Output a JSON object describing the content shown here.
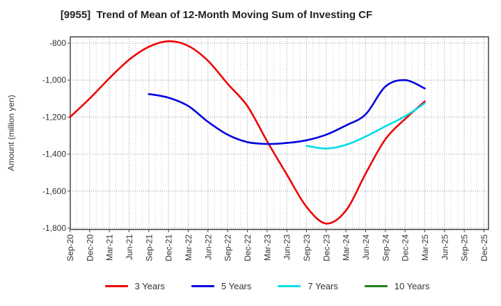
{
  "title": "[9955]  Trend of Mean of 12-Month Moving Sum of Investing CF",
  "y_axis": {
    "label": "Amount (million yen)",
    "tick_labels": [
      "-800",
      "-1,000",
      "-1,200",
      "-1,400",
      "-1,600",
      "-1,800"
    ],
    "tick_values": [
      -800,
      -1000,
      -1200,
      -1400,
      -1600,
      -1800
    ]
  },
  "x_axis": {
    "tick_labels": [
      "Sep-20",
      "Dec-20",
      "Mar-21",
      "Jun-21",
      "Sep-21",
      "Dec-21",
      "Mar-22",
      "Jun-22",
      "Sep-22",
      "Dec-22",
      "Mar-23",
      "Jun-23",
      "Sep-23",
      "Dec-23",
      "Mar-24",
      "Jun-24",
      "Sep-24",
      "Dec-24",
      "Mar-25",
      "Jun-25",
      "Sep-25",
      "Dec-25"
    ]
  },
  "legend": [
    {
      "label": "3 Years",
      "color": "#ee0000"
    },
    {
      "label": "5 Years",
      "color": "#0000e0"
    },
    {
      "label": "7 Years",
      "color": "#00dde8"
    },
    {
      "label": "10 Years",
      "color": "#1e7e1e"
    }
  ],
  "chart_data": {
    "type": "line",
    "title": "[9955]  Trend of Mean of 12-Month Moving Sum of Investing CF",
    "xlabel": "",
    "ylabel": "Amount (million yen)",
    "ylim": [
      -1800,
      -767
    ],
    "grid": "dotted; horizontal every 200, vertical monthly (minor) and quarterly (major)",
    "legend_position": "bottom",
    "categories": [
      "Sep-20",
      "Dec-20",
      "Mar-21",
      "Jun-21",
      "Sep-21",
      "Dec-21",
      "Mar-22",
      "Jun-22",
      "Sep-22",
      "Dec-22",
      "Mar-23",
      "Jun-23",
      "Sep-23",
      "Dec-23",
      "Mar-24",
      "Jun-24",
      "Sep-24",
      "Dec-24",
      "Mar-25",
      "Jun-25",
      "Sep-25",
      "Dec-25"
    ],
    "series": [
      {
        "name": "3 Years",
        "color": "#ee0000",
        "start_index": 0,
        "values": [
          -1200,
          -1100,
          -990,
          -890,
          -820,
          -790,
          -815,
          -895,
          -1020,
          -1140,
          -1330,
          -1510,
          -1685,
          -1775,
          -1705,
          -1505,
          -1320,
          -1210,
          -1115
        ]
      },
      {
        "name": "5 Years",
        "color": "#0000e0",
        "start_index": 4,
        "values": [
          -1075,
          -1095,
          -1140,
          -1225,
          -1295,
          -1335,
          -1345,
          -1340,
          -1325,
          -1295,
          -1245,
          -1185,
          -1035,
          -1000,
          -1045
        ]
      },
      {
        "name": "7 Years",
        "color": "#00dde8",
        "start_index": 12,
        "values": [
          -1355,
          -1370,
          -1350,
          -1305,
          -1250,
          -1195,
          -1125
        ]
      },
      {
        "name": "10 Years",
        "color": "#1e7e1e",
        "start_index": 0,
        "values": []
      }
    ]
  }
}
